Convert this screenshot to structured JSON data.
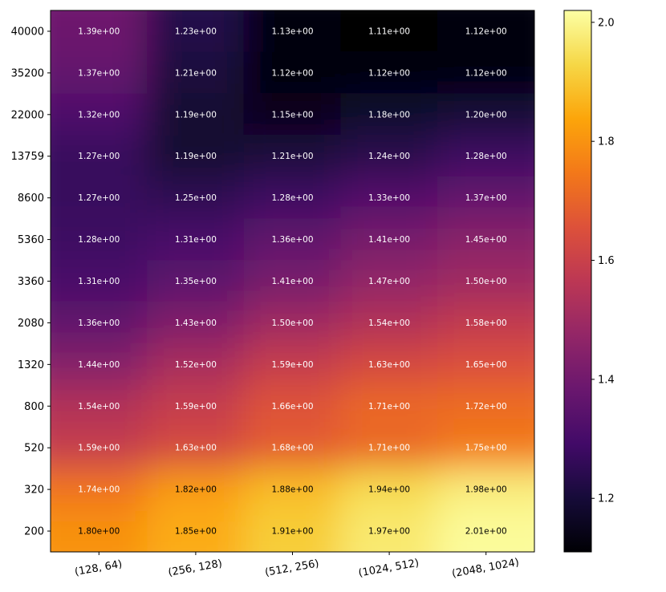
{
  "chart_data": {
    "type": "heatmap",
    "x_categories": [
      "(128, 64)",
      "(256, 128)",
      "(512, 256)",
      "(1024, 512)",
      "(2048, 1024)"
    ],
    "y_categories": [
      "40000",
      "35200",
      "22000",
      "13759",
      "8600",
      "5360",
      "3360",
      "2080",
      "1320",
      "800",
      "520",
      "320",
      "200"
    ],
    "values": [
      [
        1.39,
        1.23,
        1.13,
        1.11,
        1.12
      ],
      [
        1.37,
        1.21,
        1.12,
        1.12,
        1.12
      ],
      [
        1.32,
        1.19,
        1.15,
        1.18,
        1.2
      ],
      [
        1.27,
        1.19,
        1.21,
        1.24,
        1.28
      ],
      [
        1.27,
        1.25,
        1.28,
        1.33,
        1.37
      ],
      [
        1.28,
        1.31,
        1.36,
        1.41,
        1.45
      ],
      [
        1.31,
        1.35,
        1.41,
        1.47,
        1.5
      ],
      [
        1.36,
        1.43,
        1.5,
        1.54,
        1.58
      ],
      [
        1.44,
        1.52,
        1.59,
        1.63,
        1.65
      ],
      [
        1.54,
        1.59,
        1.66,
        1.71,
        1.72
      ],
      [
        1.59,
        1.63,
        1.68,
        1.71,
        1.75
      ],
      [
        1.74,
        1.82,
        1.88,
        1.94,
        1.98
      ],
      [
        1.8,
        1.85,
        1.91,
        1.97,
        2.01
      ]
    ],
    "cell_labels": [
      [
        "1.39e+00",
        "1.23e+00",
        "1.13e+00",
        "1.11e+00",
        "1.12e+00"
      ],
      [
        "1.37e+00",
        "1.21e+00",
        "1.12e+00",
        "1.12e+00",
        "1.12e+00"
      ],
      [
        "1.32e+00",
        "1.19e+00",
        "1.15e+00",
        "1.18e+00",
        "1.20e+00"
      ],
      [
        "1.27e+00",
        "1.19e+00",
        "1.21e+00",
        "1.24e+00",
        "1.28e+00"
      ],
      [
        "1.27e+00",
        "1.25e+00",
        "1.28e+00",
        "1.33e+00",
        "1.37e+00"
      ],
      [
        "1.28e+00",
        "1.31e+00",
        "1.36e+00",
        "1.41e+00",
        "1.45e+00"
      ],
      [
        "1.31e+00",
        "1.35e+00",
        "1.41e+00",
        "1.47e+00",
        "1.50e+00"
      ],
      [
        "1.36e+00",
        "1.43e+00",
        "1.50e+00",
        "1.54e+00",
        "1.58e+00"
      ],
      [
        "1.44e+00",
        "1.52e+00",
        "1.59e+00",
        "1.63e+00",
        "1.65e+00"
      ],
      [
        "1.54e+00",
        "1.59e+00",
        "1.66e+00",
        "1.71e+00",
        "1.72e+00"
      ],
      [
        "1.59e+00",
        "1.63e+00",
        "1.68e+00",
        "1.71e+00",
        "1.75e+00"
      ],
      [
        "1.74e+00",
        "1.82e+00",
        "1.88e+00",
        "1.94e+00",
        "1.98e+00"
      ],
      [
        "1.80e+00",
        "1.85e+00",
        "1.91e+00",
        "1.97e+00",
        "2.01e+00"
      ]
    ],
    "colormap": "inferno",
    "colorbar": {
      "min": 1.11,
      "max": 2.02,
      "ticks": [
        1.2,
        1.4,
        1.6,
        1.8,
        2.0
      ],
      "tick_labels": [
        "1.2",
        "1.4",
        "1.6",
        "1.8",
        "2.0"
      ]
    },
    "label_colors": {
      "light": "#ffffff",
      "dark": "#000000",
      "dark_threshold": 1.79
    },
    "title": "",
    "xlabel": "",
    "ylabel": ""
  }
}
